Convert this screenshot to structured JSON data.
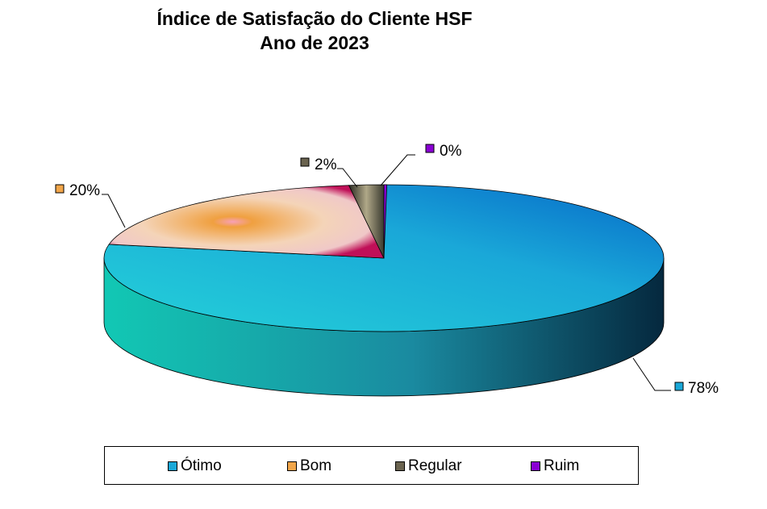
{
  "chart_data": {
    "type": "pie",
    "title": [
      "Índice de Satisfação do Cliente HSF",
      "Ano de 2023"
    ],
    "categories": [
      "Ótimo",
      "Bom",
      "Regular",
      "Ruim"
    ],
    "values": [
      78,
      20,
      2,
      0
    ],
    "labels": [
      "78%",
      "20%",
      "2%",
      "0%"
    ],
    "colors": [
      "#1aa8d8",
      "#f2a64a",
      "#6b6450",
      "#8a00d4"
    ],
    "legend_position": "bottom",
    "three_d": true
  }
}
